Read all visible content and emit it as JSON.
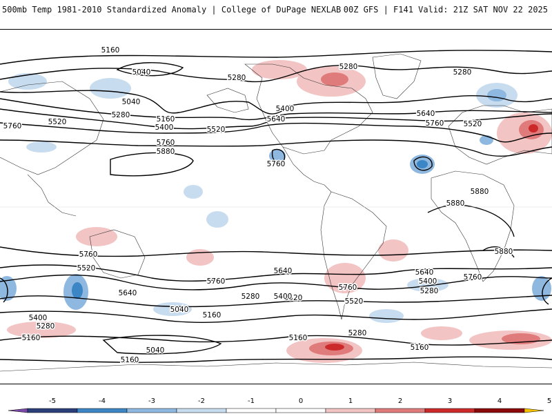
{
  "header": {
    "left_title": "500mb Temp 1981-2010 Standardized Anomaly | College of DuPage NEXLAB",
    "right_title": "00Z GFS | F141 Valid: 21Z SAT NOV 22 2025"
  },
  "map": {
    "contour_levels": [
      5040,
      5160,
      5280,
      5400,
      5520,
      5640,
      5760,
      5880
    ],
    "contour_labels": [
      {
        "text": "5160"
      },
      {
        "text": "5040"
      },
      {
        "text": "5280"
      },
      {
        "text": "5280"
      },
      {
        "text": "5280"
      },
      {
        "text": "5040"
      },
      {
        "text": "5160"
      },
      {
        "text": "5400"
      },
      {
        "text": "5400"
      },
      {
        "text": "5520"
      },
      {
        "text": "5520"
      },
      {
        "text": "5280"
      },
      {
        "text": "5640"
      },
      {
        "text": "5640"
      },
      {
        "text": "5760"
      },
      {
        "text": "5760"
      },
      {
        "text": "5520"
      },
      {
        "text": "5760"
      },
      {
        "text": "5880"
      },
      {
        "text": "5760"
      },
      {
        "text": "5880"
      },
      {
        "text": "5880"
      },
      {
        "text": "5880"
      },
      {
        "text": "5760"
      },
      {
        "text": "5520"
      },
      {
        "text": "5640"
      },
      {
        "text": "5760"
      },
      {
        "text": "5640"
      },
      {
        "text": "5520"
      },
      {
        "text": "5400"
      },
      {
        "text": "5280"
      },
      {
        "text": "5760"
      },
      {
        "text": "5520"
      },
      {
        "text": "5640"
      },
      {
        "text": "5400"
      },
      {
        "text": "5280"
      },
      {
        "text": "5760"
      },
      {
        "text": "5040"
      },
      {
        "text": "5160"
      },
      {
        "text": "5400"
      },
      {
        "text": "5280"
      },
      {
        "text": "5160"
      },
      {
        "text": "5040"
      },
      {
        "text": "5160"
      },
      {
        "text": "5160"
      },
      {
        "text": "5280"
      },
      {
        "text": "5160"
      }
    ]
  },
  "legend": {
    "ticks": [
      "-5",
      "-4",
      "-3",
      "-2",
      "-1",
      "0",
      "1",
      "2",
      "3",
      "4",
      "5"
    ],
    "colors": [
      "#7b4aa8",
      "#2a3f7a",
      "#3d86c6",
      "#8fb8e0",
      "#c8dcf0",
      "#ffffff",
      "#ffffff",
      "#f3c4c4",
      "#e07b7b",
      "#cc2a2a",
      "#8a0a0a",
      "#f6c200"
    ]
  }
}
